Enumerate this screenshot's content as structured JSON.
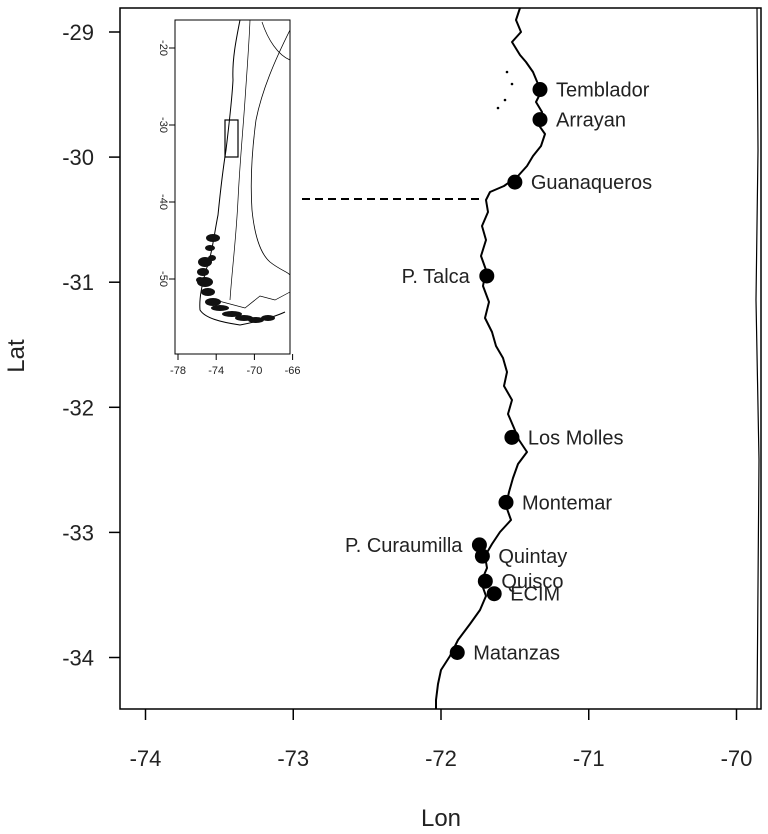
{
  "map": {
    "x_axis": {
      "label": "Lon",
      "ticks": [
        {
          "value": -74,
          "label": "-74"
        },
        {
          "value": -73,
          "label": "-73"
        },
        {
          "value": -72,
          "label": "-72"
        },
        {
          "value": -71,
          "label": "-71"
        },
        {
          "value": -70,
          "label": "-70"
        }
      ]
    },
    "y_axis": {
      "label": "Lat",
      "ticks": [
        {
          "value": -29,
          "label": "-29"
        },
        {
          "value": -30,
          "label": "-30"
        },
        {
          "value": -31,
          "label": "-31"
        },
        {
          "value": -32,
          "label": "-32"
        },
        {
          "value": -33,
          "label": "-33"
        },
        {
          "value": -34,
          "label": "-34"
        }
      ]
    },
    "sites": [
      {
        "name": "Temblador",
        "lon": -71.33,
        "lat": -29.46,
        "label_side": "right"
      },
      {
        "name": "Arrayan",
        "lon": -71.33,
        "lat": -29.7,
        "label_side": "right"
      },
      {
        "name": "Guanaqueros",
        "lon": -71.5,
        "lat": -30.2,
        "label_side": "right"
      },
      {
        "name": "P. Talca",
        "lon": -71.69,
        "lat": -30.95,
        "label_side": "left"
      },
      {
        "name": "Los Molles",
        "lon": -71.52,
        "lat": -32.24,
        "label_side": "right"
      },
      {
        "name": "Montemar",
        "lon": -71.56,
        "lat": -32.76,
        "label_side": "right"
      },
      {
        "name": "P. Curaumilla",
        "lon": -71.74,
        "lat": -33.1,
        "label_side": "left"
      },
      {
        "name": "Quintay",
        "lon": -71.72,
        "lat": -33.19,
        "label_side": "right"
      },
      {
        "name": "Quisco",
        "lon": -71.7,
        "lat": -33.39,
        "label_side": "right"
      },
      {
        "name": "ECIM",
        "lon": -71.64,
        "lat": -33.49,
        "label_side": "right"
      },
      {
        "name": "Matanzas",
        "lon": -71.89,
        "lat": -33.96,
        "label_side": "right"
      }
    ]
  },
  "inset": {
    "x_ticks": [
      {
        "value": -78,
        "label": "-78"
      },
      {
        "value": -74,
        "label": "-74"
      },
      {
        "value": -70,
        "label": "-70"
      },
      {
        "value": -66,
        "label": "-66"
      }
    ],
    "y_ticks": [
      {
        "value": -20,
        "label": "-20"
      },
      {
        "value": -30,
        "label": "-30"
      },
      {
        "value": -40,
        "label": "-40"
      },
      {
        "value": -50,
        "label": "-50"
      }
    ]
  }
}
